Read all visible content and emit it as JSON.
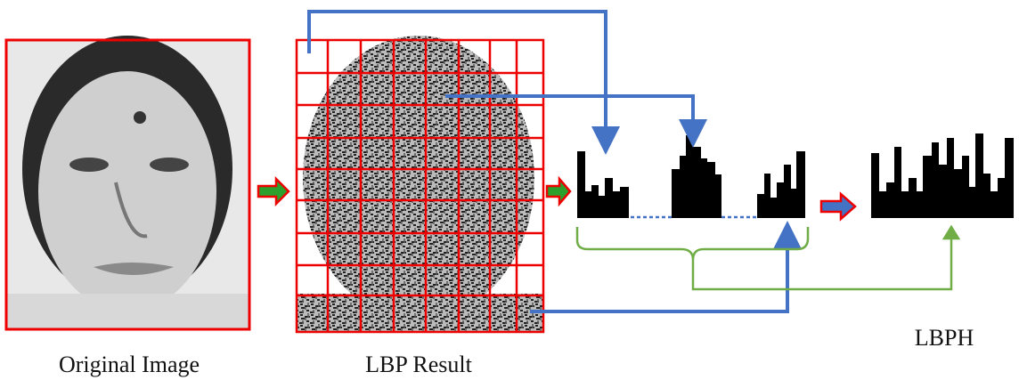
{
  "labels": {
    "original": "Original Image",
    "lbp": "LBP Result",
    "lbph": "LBPH"
  }
}
